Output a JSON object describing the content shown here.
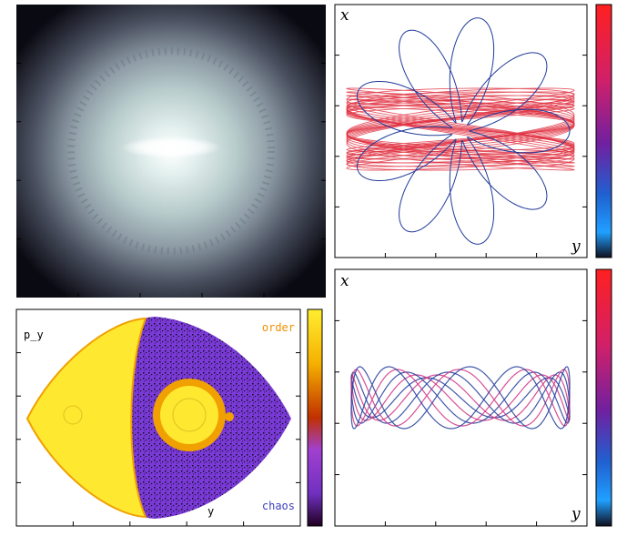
{
  "orbit_top": {
    "x_label": "x",
    "y_label": "y"
  },
  "orbit_bottom": {
    "x_label": "x",
    "y_label": "y"
  },
  "section": {
    "p_label": "p_y",
    "order_label": "order",
    "chaos_label": "chaos",
    "y_label": "y"
  }
}
